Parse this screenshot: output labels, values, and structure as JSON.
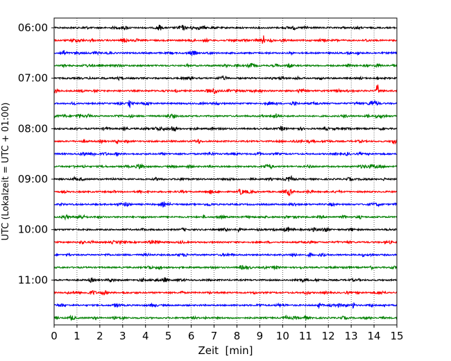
{
  "chart_data": {
    "type": "line",
    "chart_kind": "helicorder",
    "xlabel": "Zeit  [min]",
    "ylabel": "UTC (Lokalzeit = UTC + 01:00)",
    "xlim": [
      0,
      15
    ],
    "xticks": [
      0,
      1,
      2,
      3,
      4,
      5,
      6,
      7,
      8,
      9,
      10,
      11,
      12,
      13,
      14,
      15
    ],
    "xticklabels": [
      "0",
      "1",
      "2",
      "3",
      "4",
      "5",
      "6",
      "7",
      "8",
      "9",
      "10",
      "11",
      "12",
      "13",
      "14",
      "15"
    ],
    "yticklabels": [
      "06:00",
      "07:00",
      "08:00",
      "09:00",
      "10:00",
      "11:00"
    ],
    "ytick_rows": [
      0,
      4,
      8,
      12,
      16,
      20
    ],
    "trace_minutes": 15,
    "trace_count": 24,
    "first_trace_time": "06:00",
    "last_trace_time": "11:45",
    "grid": {
      "x": true,
      "y": false,
      "style": "dotted"
    },
    "colors": [
      "#000000",
      "#ff0000",
      "#0000ff",
      "#008000"
    ],
    "events": [
      {
        "row": 1,
        "minute": 9.15,
        "amplitude": 2.2
      },
      {
        "row": 5,
        "minute": 14.15,
        "amplitude": 3.4
      },
      {
        "row": 6,
        "minute": 3.3,
        "amplitude": 1.8
      },
      {
        "row": 22,
        "minute": 13.1,
        "amplitude": 1.6
      }
    ]
  }
}
